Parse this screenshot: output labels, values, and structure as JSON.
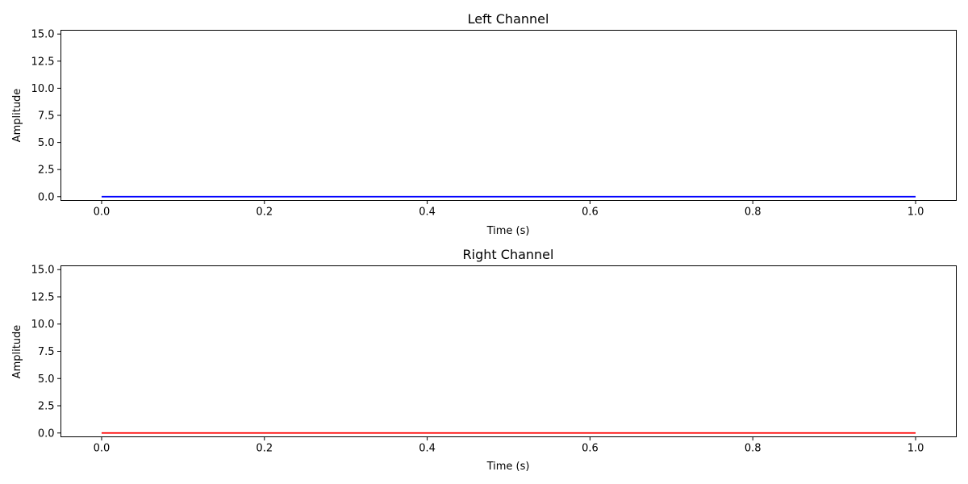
{
  "chart_data": [
    {
      "type": "line",
      "title": "Left Channel",
      "xlabel": "Time (s)",
      "ylabel": "Amplitude",
      "xlim": [
        -0.05,
        1.05
      ],
      "ylim": [
        -0.35,
        15.35
      ],
      "xticks": [
        0.0,
        0.2,
        0.4,
        0.6,
        0.8,
        1.0
      ],
      "xtick_labels": [
        "0.0",
        "0.2",
        "0.4",
        "0.6",
        "0.8",
        "1.0"
      ],
      "yticks": [
        0.0,
        2.5,
        5.0,
        7.5,
        10.0,
        12.5,
        15.0
      ],
      "ytick_labels": [
        "0.0",
        "2.5",
        "5.0",
        "7.5",
        "10.0",
        "12.5",
        "15.0"
      ],
      "grid": false,
      "series": [
        {
          "color": "#0000ff",
          "x": [
            0.0,
            1.0
          ],
          "y": [
            0.0,
            0.0
          ]
        }
      ]
    },
    {
      "type": "line",
      "title": "Right Channel",
      "xlabel": "Time (s)",
      "ylabel": "Amplitude",
      "xlim": [
        -0.05,
        1.05
      ],
      "ylim": [
        -0.35,
        15.35
      ],
      "xticks": [
        0.0,
        0.2,
        0.4,
        0.6,
        0.8,
        1.0
      ],
      "xtick_labels": [
        "0.0",
        "0.2",
        "0.4",
        "0.6",
        "0.8",
        "1.0"
      ],
      "yticks": [
        0.0,
        2.5,
        5.0,
        7.5,
        10.0,
        12.5,
        15.0
      ],
      "ytick_labels": [
        "0.0",
        "2.5",
        "5.0",
        "7.5",
        "10.0",
        "12.5",
        "15.0"
      ],
      "grid": false,
      "series": [
        {
          "color": "#ff0000",
          "x": [
            0.0,
            1.0
          ],
          "y": [
            0.0,
            0.0
          ]
        }
      ]
    }
  ]
}
